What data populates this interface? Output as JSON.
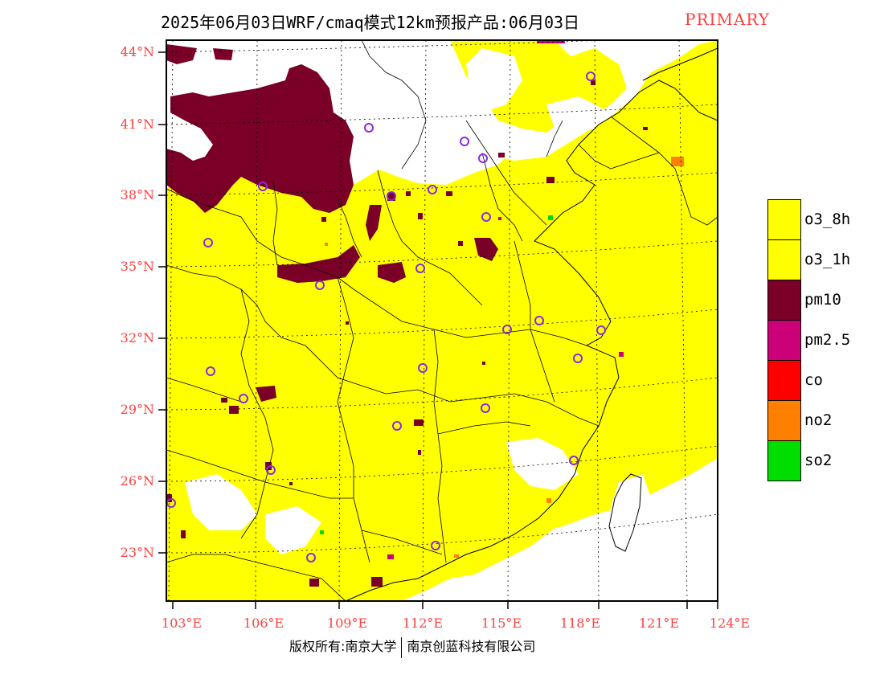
{
  "title": "2025年06月03日WRF/cmaq模式12km预报产品:06月03日",
  "title_tag": "PRIMARY",
  "lat_labels": [
    "44°N",
    "41°N",
    "38°N",
    "35°N",
    "32°N",
    "29°N",
    "26°N",
    "23°N"
  ],
  "lon_labels": [
    "103°E",
    "106°E",
    "109°E",
    "112°E",
    "115°E",
    "118°E",
    "121°E",
    "124°E"
  ],
  "legend": [
    {
      "label": "o3_8h",
      "color": "#ffff00"
    },
    {
      "label": "o3_1h",
      "color": "#ffff00"
    },
    {
      "label": "pm10",
      "color": "#7a0028"
    },
    {
      "label": "pm2.5",
      "color": "#cc0077"
    },
    {
      "label": "co",
      "color": "#ff0000"
    },
    {
      "label": "no2",
      "color": "#ff7f00"
    },
    {
      "label": "so2",
      "color": "#00dd00"
    }
  ],
  "footer": {
    "left": "版权所有:南京大学",
    "right": "南京创蓝科技有限公司"
  },
  "colors": {
    "label_red": "#ff4040",
    "o3": "#ffff00",
    "pm10": "#7a0028",
    "pm25": "#cc0077",
    "no2": "#ff7f00",
    "so2": "#00dd00",
    "city_marker": "#8a2be2"
  }
}
